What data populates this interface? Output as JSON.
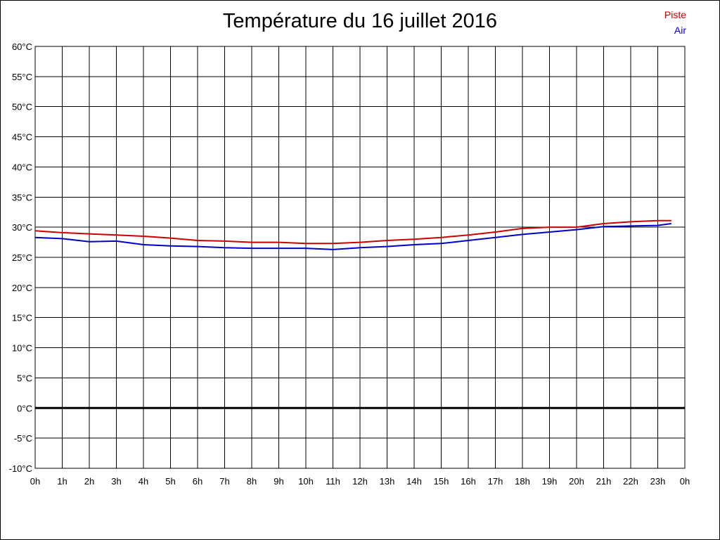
{
  "chart_data": {
    "type": "line",
    "title": "Température du 16 juillet 2016",
    "xlabel": "",
    "ylabel": "",
    "x_tick_labels": [
      "0h",
      "1h",
      "2h",
      "3h",
      "4h",
      "5h",
      "6h",
      "7h",
      "8h",
      "9h",
      "10h",
      "11h",
      "12h",
      "13h",
      "14h",
      "15h",
      "16h",
      "17h",
      "18h",
      "19h",
      "20h",
      "21h",
      "22h",
      "23h",
      "0h"
    ],
    "y_tick_labels": [
      "60°C",
      "55°C",
      "50°C",
      "45°C",
      "40°C",
      "35°C",
      "30°C",
      "25°C",
      "20°C",
      "15°C",
      "10°C",
      "5°C",
      "0°C",
      "-5°C",
      "-10°C"
    ],
    "xlim": [
      0,
      24
    ],
    "ylim": [
      -10,
      60
    ],
    "ytick_step": 5,
    "grid": true,
    "legend_position": "top-right",
    "x": [
      0,
      1,
      2,
      3,
      4,
      5,
      6,
      7,
      8,
      9,
      10,
      11,
      12,
      13,
      14,
      15,
      16,
      17,
      18,
      19,
      20,
      21,
      22,
      23,
      23.5
    ],
    "series": [
      {
        "name": "Piste",
        "color": "#cc0000",
        "values": [
          29.4,
          29.1,
          28.9,
          28.7,
          28.5,
          28.2,
          27.8,
          27.7,
          27.5,
          27.5,
          27.3,
          27.3,
          27.5,
          27.8,
          28.0,
          28.3,
          28.7,
          29.2,
          29.8,
          30.0,
          30.0,
          30.6,
          30.9,
          31.1,
          31.1
        ]
      },
      {
        "name": "Air",
        "color": "#0000cc",
        "values": [
          28.3,
          28.1,
          27.6,
          27.7,
          27.1,
          26.9,
          26.8,
          26.6,
          26.5,
          26.5,
          26.5,
          26.3,
          26.6,
          26.8,
          27.1,
          27.3,
          27.8,
          28.3,
          28.8,
          29.2,
          29.6,
          30.1,
          30.2,
          30.3,
          30.6
        ]
      }
    ]
  }
}
